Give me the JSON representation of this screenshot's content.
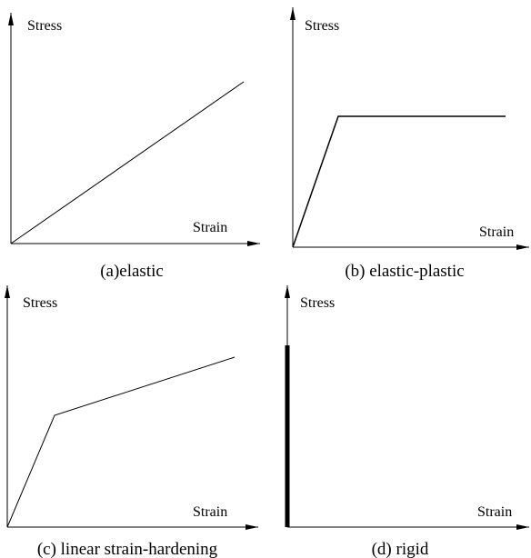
{
  "panels": [
    {
      "y_label": "Stress",
      "x_label": "Strain",
      "caption": "(a)elastic"
    },
    {
      "y_label": "Stress",
      "x_label": "Strain",
      "caption": "(b) elastic-plastic"
    },
    {
      "y_label": "Stress",
      "x_label": "Strain",
      "caption": "(c) linear strain-hardening"
    },
    {
      "y_label": "Stress",
      "x_label": "Strain",
      "caption": "(d) rigid"
    }
  ]
}
